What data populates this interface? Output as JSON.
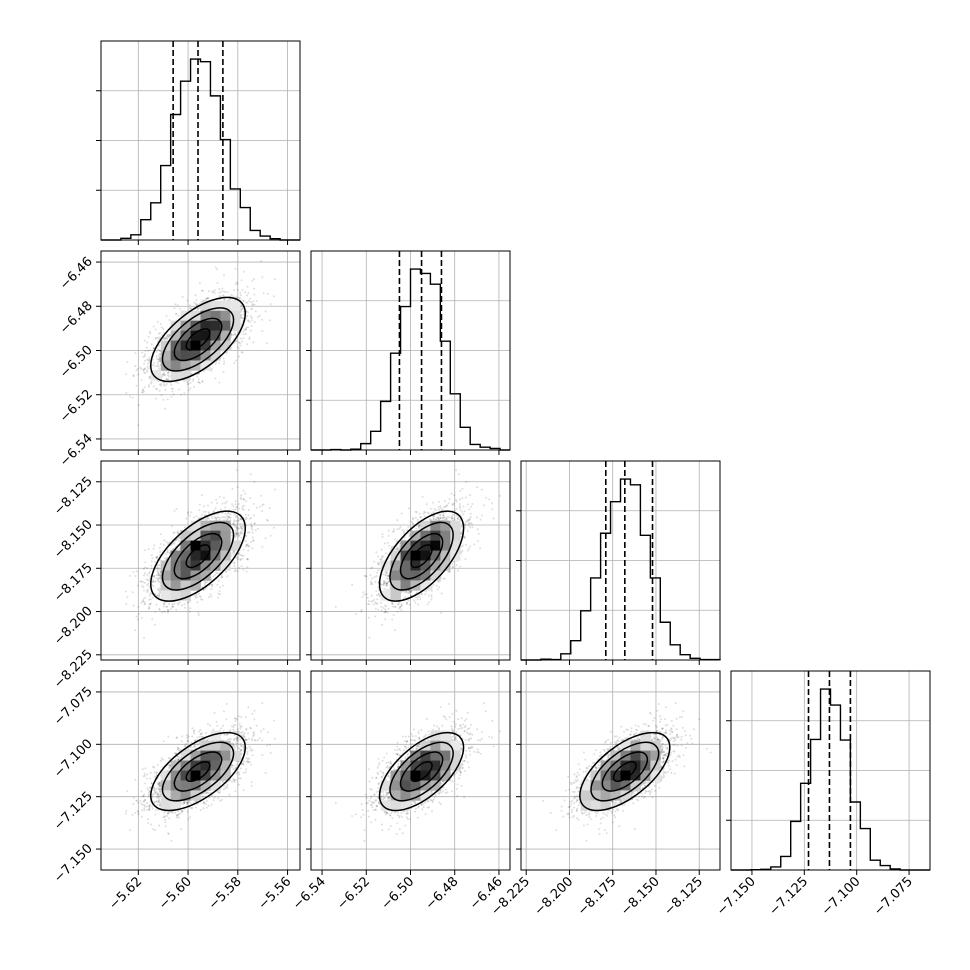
{
  "chart_data": {
    "type": "corner",
    "grid": true,
    "parameters": [
      {
        "mean": -5.596,
        "q16": -5.606,
        "q84": -5.586,
        "sd": 0.0095,
        "lim": [
          -5.635,
          -5.555
        ],
        "ticks": [
          -5.62,
          -5.6,
          -5.58,
          -5.56
        ],
        "tick_labels": [
          "−5.62",
          "−5.60",
          "−5.58",
          "−5.56"
        ]
      },
      {
        "mean": -6.495,
        "q16": -6.505,
        "q84": -6.486,
        "sd": 0.0095,
        "lim": [
          -6.545,
          -6.455
        ],
        "ticks": [
          -6.54,
          -6.52,
          -6.5,
          -6.48,
          -6.46
        ],
        "tick_labels": [
          "−6.54",
          "−6.52",
          "−6.50",
          "−6.48",
          "−6.46"
        ]
      },
      {
        "mean": -8.168,
        "q16": -8.179,
        "q84": -8.152,
        "sd": 0.013,
        "lim": [
          -8.228,
          -8.113
        ],
        "ticks": [
          -8.225,
          -8.2,
          -8.175,
          -8.15,
          -8.125
        ],
        "tick_labels": [
          "−8.225",
          "−8.200",
          "−8.175",
          "−8.150",
          "−8.125"
        ]
      },
      {
        "mean": -7.113,
        "q16": -7.123,
        "q84": -7.103,
        "sd": 0.0093,
        "lim": [
          -7.16,
          -7.065
        ],
        "ticks": [
          -7.15,
          -7.125,
          -7.1,
          -7.075
        ],
        "tick_labels": [
          "−7.150",
          "−7.125",
          "−7.100",
          "−7.075"
        ]
      }
    ],
    "correlation": 0.62,
    "histogram_bins": 20
  }
}
